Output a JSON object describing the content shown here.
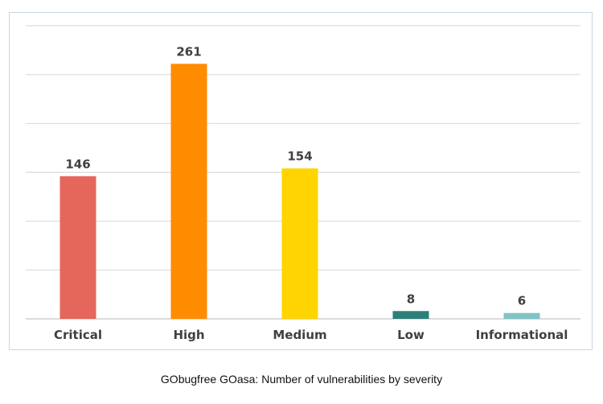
{
  "chart_data": {
    "type": "bar",
    "title": "",
    "xlabel": "",
    "ylabel": "",
    "categories": [
      "Critical",
      "High",
      "Medium",
      "Low",
      "Informational"
    ],
    "values": [
      146,
      261,
      154,
      8,
      6
    ],
    "colors": [
      "#e5665a",
      "#ff8c00",
      "#ffd400",
      "#2e7f79",
      "#82c3c4"
    ],
    "ylim": [
      0,
      300
    ],
    "y_step": 50,
    "grid": true,
    "legend": "none"
  },
  "caption": "GObugfree GOasa: Number of vulnerabilities by severity"
}
